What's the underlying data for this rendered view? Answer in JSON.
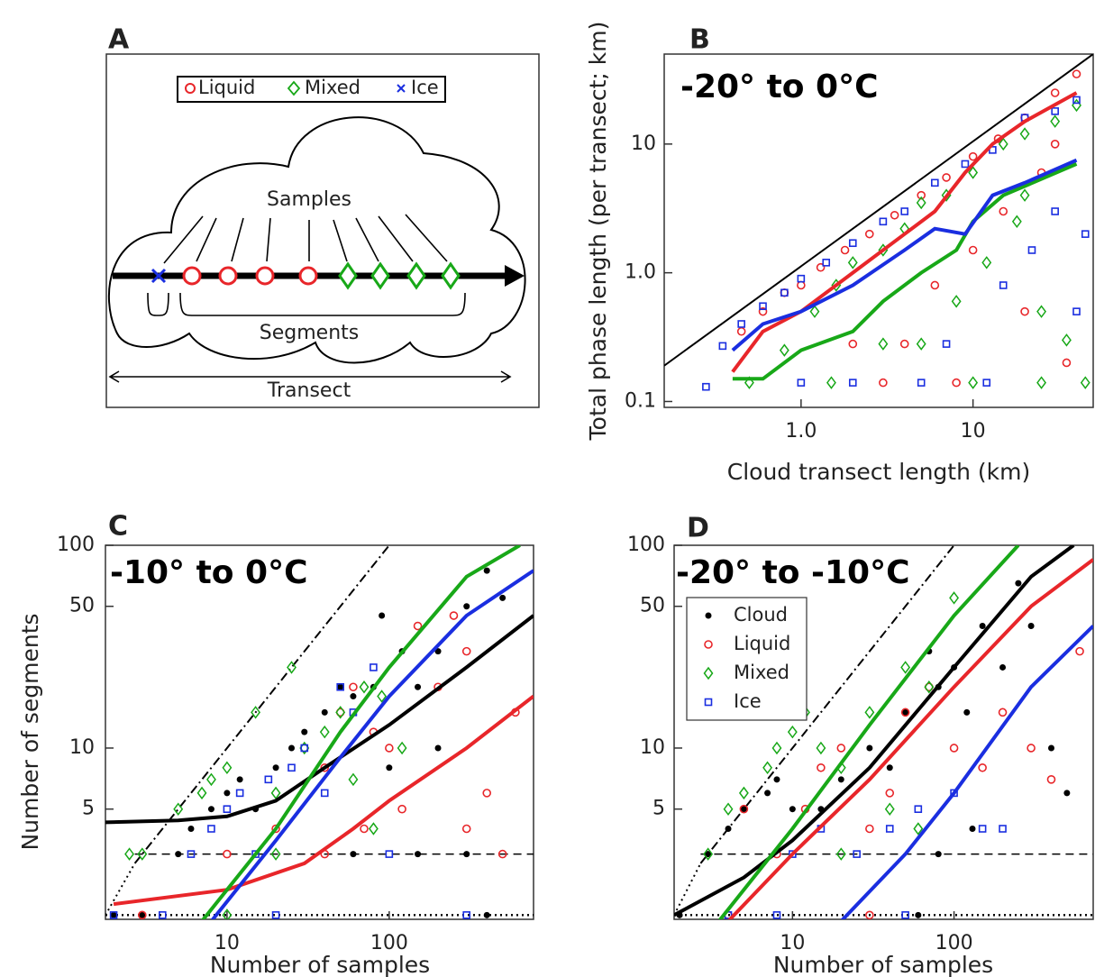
{
  "panel_a": {
    "panel_label": "A",
    "legend": [
      "Liquid",
      "Mixed",
      "Ice"
    ],
    "samples_label": "Samples",
    "segments_label": "Segments",
    "transect_label": "Transect"
  },
  "chart_data": [
    {
      "type": "scatter",
      "panel_label": "B",
      "annotation": "-20° to 0°C",
      "x_label": "Cloud transect length (km)",
      "y_label": "Total phase length (per transect; km)",
      "log_x": true,
      "log_y": true,
      "xlim": [
        0.16,
        50
      ],
      "ylim": [
        0.09,
        50
      ],
      "xticks": [
        {
          "value": 1,
          "label": "1.0"
        },
        10
      ],
      "yticks": [
        0.1,
        {
          "value": 1,
          "label": "1.0"
        },
        10
      ],
      "series": [
        {
          "mode": "line",
          "color": "#000000",
          "width": 2,
          "dash": "solid",
          "x": [
            0.16,
            50
          ],
          "values": [
            0.19,
            50
          ]
        },
        {
          "mode": "markers",
          "marker": "circle",
          "color": "#e8262a",
          "x": [
            0.45,
            0.6,
            0.8,
            1.0,
            1.3,
            1.8,
            2.5,
            3.5,
            5,
            7,
            10,
            14,
            20,
            30,
            40,
            2,
            4,
            6,
            10,
            15,
            25,
            35,
            3,
            8,
            20,
            30
          ],
          "values": [
            0.35,
            0.5,
            0.7,
            0.8,
            1.1,
            1.5,
            2,
            2.8,
            4,
            5.5,
            8,
            11,
            16,
            25,
            35,
            0.28,
            0.28,
            0.8,
            1.5,
            3,
            6,
            0.2,
            0.14,
            0.14,
            0.5,
            10
          ]
        },
        {
          "mode": "markers",
          "marker": "diamond",
          "color": "#18a818",
          "x": [
            0.5,
            0.8,
            1.2,
            1.6,
            2,
            3,
            4,
            5,
            7,
            10,
            15,
            20,
            30,
            40,
            1.5,
            3,
            5,
            8,
            12,
            18,
            25,
            35,
            10,
            25,
            45,
            20
          ],
          "values": [
            0.14,
            0.25,
            0.5,
            0.8,
            1.2,
            1.5,
            2.2,
            3.5,
            4,
            6,
            10,
            12,
            15,
            20,
            0.14,
            0.28,
            0.28,
            0.6,
            1.2,
            2.5,
            0.5,
            0.3,
            0.14,
            0.14,
            0.14,
            4
          ]
        },
        {
          "mode": "markers",
          "marker": "square",
          "color": "#1a2ee0",
          "x": [
            0.28,
            0.35,
            0.45,
            0.6,
            0.8,
            1.0,
            1.4,
            2,
            3,
            4,
            6,
            9,
            13,
            20,
            30,
            40,
            1,
            2,
            5,
            12,
            15,
            22,
            30,
            40,
            45,
            7
          ],
          "values": [
            0.13,
            0.27,
            0.4,
            0.55,
            0.7,
            0.9,
            1.2,
            1.7,
            2.5,
            3,
            5,
            7,
            9,
            16,
            18,
            22,
            0.14,
            0.14,
            0.14,
            0.14,
            0.8,
            1.5,
            3,
            0.5,
            2,
            0.28
          ]
        },
        {
          "mode": "line",
          "color": "#e8262a",
          "width": 4,
          "dash": "solid",
          "x": [
            0.4,
            0.6,
            1,
            2,
            4,
            6,
            9,
            13,
            20,
            40
          ],
          "values": [
            0.17,
            0.35,
            0.5,
            1.0,
            2,
            3,
            6,
            10,
            15,
            25
          ]
        },
        {
          "mode": "line",
          "color": "#18a818",
          "width": 4,
          "dash": "solid",
          "x": [
            0.4,
            0.6,
            1,
            2,
            3,
            5,
            8,
            10,
            15,
            40
          ],
          "values": [
            0.15,
            0.15,
            0.25,
            0.35,
            0.6,
            1.0,
            1.5,
            2.5,
            4,
            7
          ]
        },
        {
          "mode": "line",
          "color": "#1a2ee0",
          "width": 4,
          "dash": "solid",
          "x": [
            0.4,
            0.6,
            1,
            2,
            4,
            6,
            9,
            13,
            20,
            40
          ],
          "values": [
            0.25,
            0.4,
            0.5,
            0.8,
            1.5,
            2.2,
            2.0,
            4,
            5,
            7.5
          ]
        }
      ]
    },
    {
      "type": "scatter",
      "panel_label": "C",
      "annotation": "-10° to 0°C",
      "x_label": "Number of samples",
      "y_label": "Number of segments",
      "log_x": true,
      "log_y": true,
      "xlim": [
        1.78,
        776
      ],
      "ylim": [
        1.43,
        100
      ],
      "xticks": [
        10,
        100
      ],
      "yticks": [
        5,
        10,
        50,
        100
      ],
      "series": [
        {
          "mode": "line",
          "color": "#000000",
          "width": 2,
          "dash": "dashdot",
          "x": [
            2.7,
            100
          ],
          "values": [
            2.7,
            100
          ]
        },
        {
          "mode": "line",
          "color": "#000000",
          "width": 2,
          "dash": "dotted",
          "x": [
            1.78,
            2.7
          ],
          "values": [
            1.5,
            2.7
          ]
        },
        {
          "mode": "line",
          "color": "#000000",
          "width": 1.5,
          "dash": "dashed",
          "x": [
            2.7,
            776
          ],
          "values": [
            3,
            3
          ]
        },
        {
          "mode": "line",
          "color": "#000000",
          "width": 2.5,
          "dash": "dotted",
          "x": [
            1.78,
            776
          ],
          "values": [
            1.5,
            1.5
          ]
        },
        {
          "mode": "markers",
          "marker": "dot",
          "color": "#000000",
          "x": [
            2,
            3,
            5,
            6,
            8,
            10,
            12,
            15,
            20,
            25,
            30,
            40,
            50,
            60,
            80,
            90,
            120,
            150,
            200,
            300,
            400,
            500,
            300,
            150,
            400,
            60,
            100,
            200
          ],
          "values": [
            1.5,
            1.5,
            3,
            4,
            5,
            6,
            7,
            5,
            8,
            10,
            12,
            15,
            20,
            18,
            20,
            45,
            30,
            20,
            10,
            50,
            75,
            55,
            3,
            3,
            1.5,
            3,
            8,
            30
          ]
        },
        {
          "mode": "markers",
          "marker": "circle",
          "color": "#e8262a",
          "x": [
            3,
            10,
            20,
            30,
            40,
            50,
            60,
            80,
            100,
            120,
            150,
            200,
            250,
            300,
            400,
            600,
            300,
            500,
            40,
            70
          ],
          "values": [
            1.5,
            3,
            4,
            10,
            8,
            15,
            20,
            12,
            10,
            5,
            40,
            20,
            45,
            30,
            6,
            15,
            4,
            3,
            3,
            4
          ]
        },
        {
          "mode": "markers",
          "marker": "diamond",
          "color": "#18a818",
          "x": [
            2.5,
            3,
            5,
            7,
            8,
            10,
            15,
            20,
            25,
            30,
            40,
            50,
            70,
            90,
            120,
            60,
            20,
            80,
            10
          ],
          "values": [
            3,
            3,
            5,
            6,
            7,
            8,
            15,
            6,
            25,
            10,
            12,
            15,
            20,
            18,
            10,
            7,
            3,
            4,
            1.5
          ]
        },
        {
          "mode": "markers",
          "marker": "square",
          "color": "#1a2ee0",
          "x": [
            2,
            4,
            6,
            8,
            10,
            12,
            18,
            25,
            30,
            50,
            60,
            80,
            40,
            20,
            100,
            300,
            15
          ],
          "values": [
            1.5,
            1.5,
            3,
            4,
            5,
            6,
            7,
            8,
            10,
            20,
            15,
            25,
            6,
            1.5,
            3,
            1.5,
            3
          ]
        },
        {
          "mode": "line",
          "color": "#000000",
          "width": 4,
          "dash": "solid",
          "x": [
            1.78,
            5,
            10,
            20,
            40,
            100,
            300,
            776
          ],
          "values": [
            4.3,
            4.4,
            4.6,
            5.5,
            8,
            13,
            25,
            45
          ]
        },
        {
          "mode": "line",
          "color": "#e8262a",
          "width": 4,
          "dash": "solid",
          "x": [
            2,
            10,
            30,
            60,
            100,
            300,
            776
          ],
          "values": [
            1.7,
            2,
            2.7,
            4,
            5.5,
            10,
            18
          ]
        },
        {
          "mode": "line",
          "color": "#18a818",
          "width": 4,
          "dash": "solid",
          "x": [
            7,
            20,
            50,
            100,
            300,
            640
          ],
          "values": [
            1.4,
            4,
            12,
            25,
            70,
            100
          ]
        },
        {
          "mode": "line",
          "color": "#1a2ee0",
          "width": 4,
          "dash": "solid",
          "x": [
            8,
            20,
            50,
            100,
            300,
            776
          ],
          "values": [
            1.4,
            3.5,
            9,
            18,
            45,
            75
          ]
        }
      ]
    },
    {
      "type": "scatter",
      "panel_label": "D",
      "annotation": "-20° to -10°C",
      "x_label": "Number of samples",
      "log_x": true,
      "log_y": true,
      "xlim": [
        1.85,
        727
      ],
      "ylim": [
        1.43,
        100
      ],
      "xticks": [
        10,
        100
      ],
      "yticks": [
        5,
        10,
        50,
        100
      ],
      "legend": "upper left",
      "series": [
        {
          "mode": "line",
          "color": "#000000",
          "width": 2,
          "dash": "dashdot",
          "x": [
            2.7,
            100
          ],
          "values": [
            2.7,
            100
          ]
        },
        {
          "mode": "line",
          "color": "#000000",
          "width": 2,
          "dash": "dotted",
          "x": [
            1.85,
            2.7
          ],
          "values": [
            1.5,
            2.7
          ]
        },
        {
          "mode": "line",
          "color": "#000000",
          "width": 1.5,
          "dash": "dashed",
          "x": [
            2.7,
            727
          ],
          "values": [
            3,
            3
          ]
        },
        {
          "mode": "line",
          "color": "#000000",
          "width": 2.5,
          "dash": "dotted",
          "x": [
            1.85,
            727
          ],
          "values": [
            1.5,
            1.5
          ]
        },
        {
          "mode": "markers",
          "marker": "dot",
          "color": "#000000",
          "name": "Cloud",
          "x": [
            2,
            3,
            4,
            5,
            7,
            8,
            10,
            15,
            20,
            30,
            40,
            50,
            70,
            80,
            100,
            120,
            150,
            200,
            250,
            300,
            400,
            500,
            130,
            80,
            60
          ],
          "values": [
            1.5,
            3,
            4,
            5,
            6,
            7,
            5,
            5,
            7,
            10,
            8,
            15,
            30,
            20,
            25,
            15,
            40,
            25,
            65,
            40,
            10,
            6,
            4,
            3,
            1.5
          ]
        },
        {
          "mode": "markers",
          "marker": "circle",
          "color": "#e8262a",
          "name": "Liquid",
          "x": [
            4,
            5,
            8,
            12,
            15,
            20,
            30,
            40,
            50,
            70,
            100,
            150,
            200,
            300,
            400,
            600,
            30
          ],
          "values": [
            1.5,
            5,
            3,
            5,
            8,
            10,
            4,
            6,
            15,
            20,
            10,
            8,
            15,
            10,
            7,
            30,
            1.5
          ]
        },
        {
          "mode": "markers",
          "marker": "diamond",
          "color": "#18a818",
          "name": "Mixed",
          "x": [
            3,
            4,
            5,
            7,
            8,
            10,
            12,
            15,
            20,
            30,
            50,
            70,
            100,
            40,
            60,
            20
          ],
          "values": [
            3,
            5,
            6,
            8,
            10,
            12,
            15,
            10,
            8,
            15,
            25,
            20,
            55,
            5,
            4,
            3
          ]
        },
        {
          "mode": "markers",
          "marker": "square",
          "color": "#1a2ee0",
          "name": "Ice",
          "x": [
            4,
            8,
            15,
            25,
            40,
            60,
            100,
            150,
            200,
            50,
            10
          ],
          "values": [
            1.5,
            1.5,
            4,
            3,
            4,
            5,
            6,
            4,
            4,
            1.5,
            3
          ]
        },
        {
          "mode": "line",
          "color": "#000000",
          "width": 4,
          "dash": "solid",
          "x": [
            1.85,
            5,
            10,
            30,
            100,
            300,
            550
          ],
          "values": [
            1.5,
            2.3,
            3.5,
            8,
            25,
            70,
            100
          ]
        },
        {
          "mode": "line",
          "color": "#18a818",
          "width": 4,
          "dash": "solid",
          "x": [
            3.5,
            10,
            30,
            100,
            250
          ],
          "values": [
            1.4,
            4,
            13,
            45,
            100
          ]
        },
        {
          "mode": "line",
          "color": "#e8262a",
          "width": 4,
          "dash": "solid",
          "x": [
            4,
            10,
            30,
            100,
            300,
            727
          ],
          "values": [
            1.4,
            3,
            7,
            20,
            50,
            85
          ]
        },
        {
          "mode": "line",
          "color": "#1a2ee0",
          "width": 4,
          "dash": "solid",
          "x": [
            20,
            50,
            100,
            300,
            727
          ],
          "values": [
            1.4,
            3,
            6,
            20,
            40
          ]
        }
      ]
    }
  ]
}
